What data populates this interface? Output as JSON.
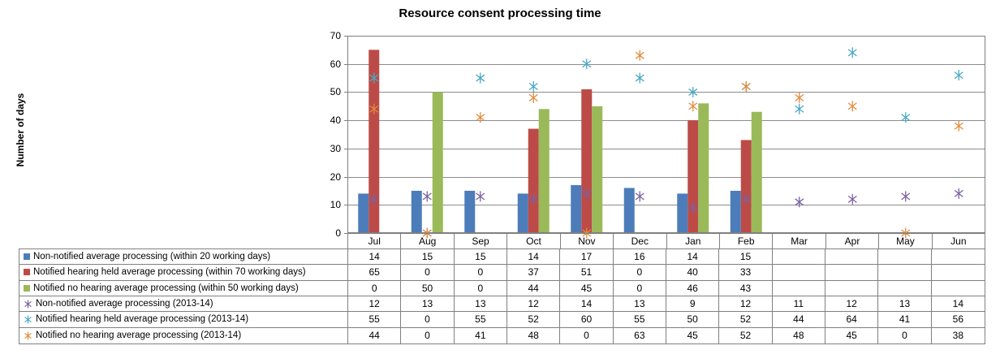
{
  "title": "Resource consent processing time",
  "y_axis_label": "Number of days",
  "colors": {
    "bar_blue": "#4C7DBA",
    "bar_red": "#BC4B47",
    "bar_green": "#9ABA59",
    "marker_purple": "#7C61A1",
    "marker_teal": "#49A8C4",
    "marker_orange": "#E28B3D",
    "gridline": "#8C8C8C",
    "plot_border": "#7F7F7F",
    "table_border": "#808080"
  },
  "chart_data": {
    "type": "combo-bar-scatter",
    "title": "Resource consent processing time",
    "ylabel": "Number of days",
    "ylim": [
      0,
      70
    ],
    "y_ticks": [
      0,
      10,
      20,
      30,
      40,
      50,
      60,
      70
    ],
    "grid": true,
    "legend_position": "data-table-left",
    "categories": [
      "Jul",
      "Aug",
      "Sep",
      "Oct",
      "Nov",
      "Dec",
      "Jan",
      "Feb",
      "Mar",
      "Apr",
      "May",
      "Jun"
    ],
    "series": [
      {
        "name": "Non-notified average processing (within 20 working days)",
        "type": "bar",
        "color_key": "bar_blue",
        "values": [
          14,
          15,
          15,
          14,
          17,
          16,
          14,
          15,
          null,
          null,
          null,
          null
        ]
      },
      {
        "name": "Notified hearing held average processing (within 70 working days)",
        "type": "bar",
        "color_key": "bar_red",
        "values": [
          65,
          0,
          0,
          37,
          51,
          0,
          40,
          33,
          null,
          null,
          null,
          null
        ]
      },
      {
        "name": "Notified no hearing average processing (within 50 working days)",
        "type": "bar",
        "color_key": "bar_green",
        "values": [
          0,
          50,
          0,
          44,
          45,
          0,
          46,
          43,
          null,
          null,
          null,
          null
        ]
      },
      {
        "name": "Non-notified average processing (2013-14)",
        "type": "scatter",
        "color_key": "marker_purple",
        "values": [
          12,
          13,
          13,
          12,
          14,
          13,
          9,
          12,
          11,
          12,
          13,
          14
        ]
      },
      {
        "name": "Notified hearing held average processing (2013-14)",
        "type": "scatter",
        "color_key": "marker_teal",
        "values": [
          55,
          0,
          55,
          52,
          60,
          55,
          50,
          52,
          44,
          64,
          41,
          56
        ]
      },
      {
        "name": "Notified no hearing average processing (2013-14)",
        "type": "scatter",
        "color_key": "marker_orange",
        "values": [
          44,
          0,
          41,
          48,
          0,
          63,
          45,
          52,
          48,
          45,
          0,
          38
        ]
      }
    ]
  }
}
